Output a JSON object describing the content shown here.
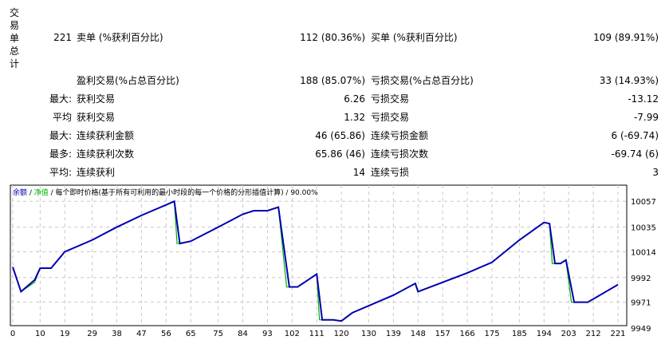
{
  "section_title": "交易单总计",
  "rows": [
    {
      "c1": "221",
      "c2": "卖单 (%获利百分比)",
      "c3": "112 (80.36%)",
      "c4": "买单 (%获利百分比)",
      "c5": "109 (89.91%)"
    },
    {
      "c1": "",
      "c2": "盈利交易(%占总百分比)",
      "c3": "188 (85.07%)",
      "c4": "亏损交易(%占总百分比)",
      "c5": "33 (14.93%)"
    },
    {
      "c1": "最大:",
      "c2": "获利交易",
      "c3": "6.26",
      "c4": "亏损交易",
      "c5": "-13.12"
    },
    {
      "c1": "平均",
      "c2": "获利交易",
      "c3": "1.32",
      "c4": "亏损交易",
      "c5": "-7.99"
    },
    {
      "c1": "最大:",
      "c2": "连续获利金额",
      "c3": "46 (65.86)",
      "c4": "连续亏损金额",
      "c5": "6 (-69.74)"
    },
    {
      "c1": "最多:",
      "c2": "连续获利次数",
      "c3": "65.86 (46)",
      "c4": "连续亏损次数",
      "c5": "-69.74 (6)"
    },
    {
      "c1": "平均:",
      "c2": "连续获利",
      "c3": "14",
      "c4": "连续亏损",
      "c5": "3"
    }
  ],
  "chart_caption": {
    "balance": "余额",
    "sep1": " / ",
    "equity": "净值",
    "rest": " / 每个即时价格(基于所有可利用的最小时段的每一个价格的分形插值计算) / 90.00%"
  },
  "chart_data": {
    "type": "line",
    "x_ticks": [
      0,
      10,
      19,
      29,
      38,
      47,
      56,
      65,
      75,
      84,
      93,
      102,
      111,
      120,
      130,
      139,
      148,
      157,
      166,
      175,
      185,
      194,
      203,
      212,
      221
    ],
    "y_ticks": [
      9949,
      9971,
      9992,
      10014,
      10035,
      10057
    ],
    "ylim": [
      9949,
      10068
    ],
    "xlim": [
      0,
      225
    ],
    "grid": true,
    "colors": {
      "balance": "#0000b0",
      "equity": "#00b000"
    },
    "series": [
      {
        "name": "余额",
        "x": [
          0,
          3,
          8,
          10,
          14,
          19,
          29,
          38,
          47,
          56,
          59,
          61,
          65,
          75,
          84,
          88,
          93,
          97,
          101,
          104,
          111,
          113,
          117,
          120,
          124,
          130,
          139,
          147,
          148,
          157,
          166,
          175,
          185,
          194,
          196,
          198,
          200,
          202,
          205,
          210,
          221
        ],
        "values": [
          10001,
          9980,
          9990,
          10000,
          10000,
          10014,
          10024,
          10035,
          10045,
          10054,
          10057,
          10021,
          10023,
          10035,
          10046,
          10049,
          10049,
          10052,
          9984,
          9984,
          9995,
          9956,
          9956,
          9955,
          9962,
          9968,
          9977,
          9987,
          9980,
          9988,
          9996,
          10005,
          10024,
          10039,
          10038,
          10004,
          10004,
          10007,
          9971,
          9971,
          9986
        ]
      },
      {
        "name": "净值",
        "x": [
          0,
          3,
          8,
          10,
          14,
          19,
          29,
          38,
          47,
          56,
          59,
          60,
          65,
          75,
          84,
          88,
          93,
          97,
          100,
          104,
          111,
          112,
          117,
          120,
          124,
          130,
          139,
          147,
          148,
          157,
          166,
          175,
          185,
          194,
          196,
          197,
          200,
          202,
          204,
          210,
          221
        ],
        "values": [
          10001,
          9980,
          9988,
          10000,
          10000,
          10014,
          10024,
          10035,
          10045,
          10054,
          10057,
          10021,
          10023,
          10035,
          10046,
          10049,
          10049,
          10052,
          9984,
          9984,
          9995,
          9956,
          9956,
          9955,
          9962,
          9968,
          9977,
          9987,
          9980,
          9988,
          9996,
          10005,
          10024,
          10039,
          10038,
          10004,
          10004,
          10007,
          9971,
          9971,
          9986
        ]
      }
    ]
  }
}
